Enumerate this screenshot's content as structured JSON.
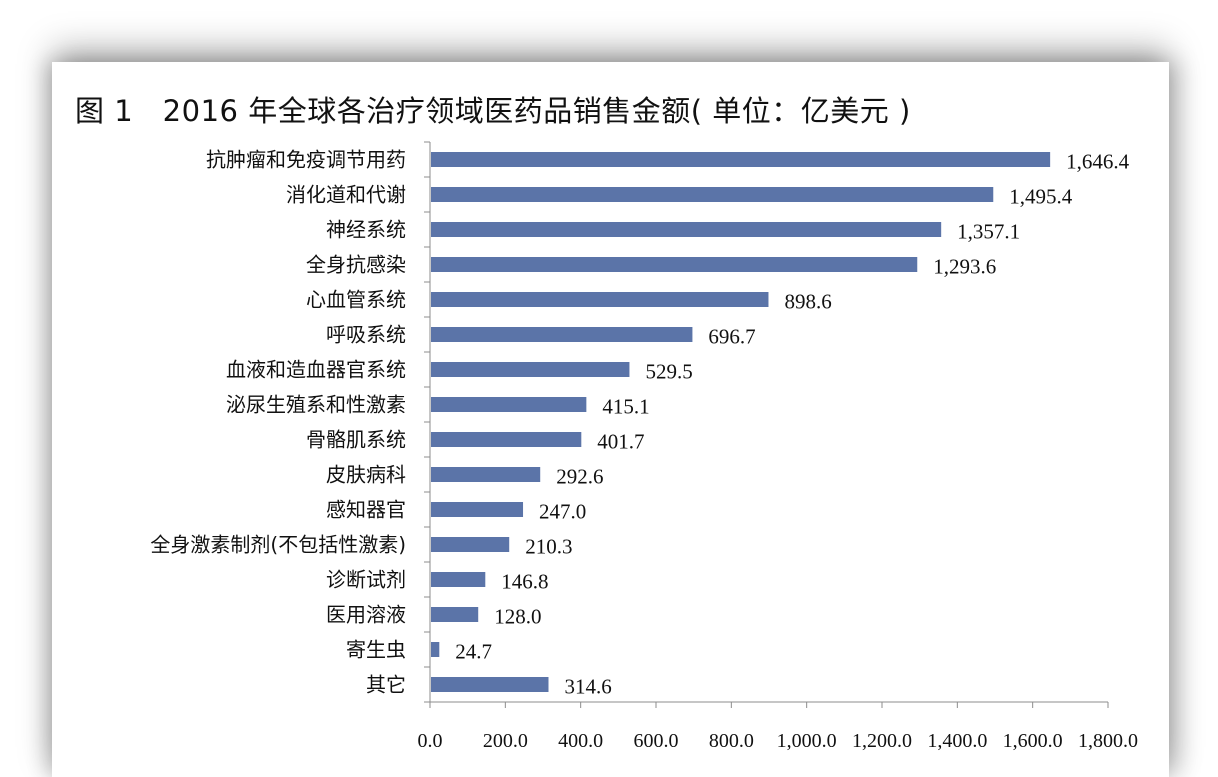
{
  "title": "图 1　2016 年全球各治疗领域医药品销售金额( 单位：亿美元 )",
  "colors": {
    "bar": "#5B74A8",
    "axis": "#8c8c8c",
    "text": "#111111"
  },
  "chart_data": {
    "type": "bar",
    "orientation": "horizontal",
    "title": "图 1　2016 年全球各治疗领域医药品销售金额( 单位：亿美元 )",
    "categories": [
      "抗肿瘤和免疫调节用药",
      "消化道和代谢",
      "神经系统",
      "全身抗感染",
      "心血管系统",
      "呼吸系统",
      "血液和造血器官系统",
      "泌尿生殖系和性激素",
      "骨骼肌系统",
      "皮肤病科",
      "感知器官",
      "全身激素制剂(不包括性激素)",
      "诊断试剂",
      "医用溶液",
      "寄生虫",
      "其它"
    ],
    "values": [
      1646.4,
      1495.4,
      1357.1,
      1293.6,
      898.6,
      696.7,
      529.5,
      415.1,
      401.7,
      292.6,
      247.0,
      210.3,
      146.8,
      128.0,
      24.7,
      314.6
    ],
    "value_labels": [
      "1,646.4",
      "1,495.4",
      "1,357.1",
      "1,293.6",
      "898.6",
      "696.7",
      "529.5",
      "415.1",
      "401.7",
      "292.6",
      "247.0",
      "210.3",
      "146.8",
      "128.0",
      "24.7",
      "314.6"
    ],
    "xlim": [
      0,
      1800
    ],
    "x_ticks": [
      0,
      200,
      400,
      600,
      800,
      1000,
      1200,
      1400,
      1600,
      1800
    ],
    "x_tick_labels": [
      "0.0",
      "200.0",
      "400.0",
      "600.0",
      "800.0",
      "1,000.0",
      "1,200.0",
      "1,400.0",
      "1,600.0",
      "1,800.0"
    ],
    "grid": false,
    "legend": "none"
  }
}
